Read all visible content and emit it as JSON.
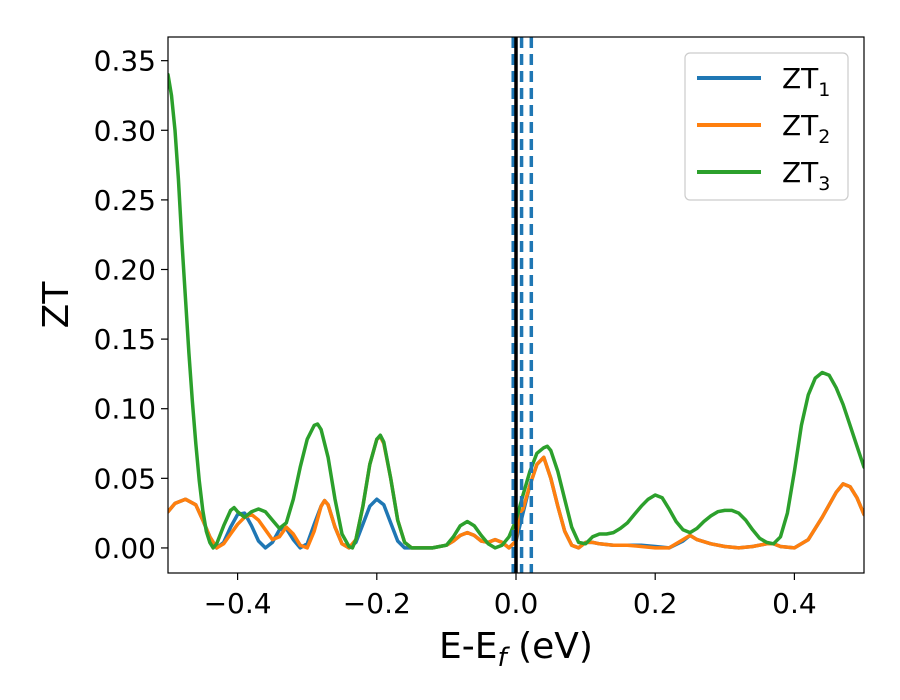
{
  "chart_data": {
    "type": "line",
    "xlabel": "E-E",
    "xlabel_sub": "f",
    "xlabel_unit": " (eV)",
    "ylabel": "ZT",
    "xlim": [
      -0.5,
      0.5
    ],
    "ylim": [
      -0.018,
      0.367
    ],
    "xticks": [
      -0.4,
      -0.2,
      0.0,
      0.2,
      0.4
    ],
    "xtick_labels": [
      "−0.4",
      "−0.2",
      "0.0",
      "0.2",
      "0.4"
    ],
    "yticks": [
      0.0,
      0.05,
      0.1,
      0.15,
      0.2,
      0.25,
      0.3,
      0.35
    ],
    "ytick_labels": [
      "0.00",
      "0.05",
      "0.10",
      "0.15",
      "0.20",
      "0.25",
      "0.30",
      "0.35"
    ],
    "legend_position": "top-right",
    "vlines": [
      {
        "x": 0.0,
        "style": "solid",
        "color": "#000000"
      },
      {
        "x": -0.004,
        "style": "dashed",
        "color": "#1f77b4"
      },
      {
        "x": 0.008,
        "style": "dashed",
        "color": "#1f77b4"
      },
      {
        "x": 0.022,
        "style": "dashed",
        "color": "#1f77b4"
      }
    ],
    "series": [
      {
        "name": "ZT",
        "sub": "1",
        "color": "#1f77b4",
        "points": [
          [
            -0.5,
            0.026
          ],
          [
            -0.49,
            0.032
          ],
          [
            -0.475,
            0.035
          ],
          [
            -0.46,
            0.031
          ],
          [
            -0.45,
            0.02
          ],
          [
            -0.44,
            0.008
          ],
          [
            -0.43,
            0.0
          ],
          [
            -0.42,
            0.004
          ],
          [
            -0.41,
            0.015
          ],
          [
            -0.4,
            0.024
          ],
          [
            -0.39,
            0.025
          ],
          [
            -0.38,
            0.016
          ],
          [
            -0.37,
            0.005
          ],
          [
            -0.36,
            0.0
          ],
          [
            -0.35,
            0.004
          ],
          [
            -0.34,
            0.013
          ],
          [
            -0.33,
            0.014
          ],
          [
            -0.32,
            0.006
          ],
          [
            -0.31,
            0.0
          ],
          [
            -0.3,
            0.003
          ],
          [
            -0.29,
            0.017
          ],
          [
            -0.28,
            0.03
          ],
          [
            -0.275,
            0.034
          ],
          [
            -0.27,
            0.031
          ],
          [
            -0.26,
            0.015
          ],
          [
            -0.25,
            0.003
          ],
          [
            -0.24,
            0.0
          ],
          [
            -0.23,
            0.004
          ],
          [
            -0.22,
            0.017
          ],
          [
            -0.21,
            0.03
          ],
          [
            -0.2,
            0.035
          ],
          [
            -0.19,
            0.031
          ],
          [
            -0.18,
            0.018
          ],
          [
            -0.17,
            0.005
          ],
          [
            -0.16,
            0.0
          ],
          [
            -0.14,
            0.0
          ],
          [
            -0.12,
            0.0
          ],
          [
            -0.1,
            0.002
          ],
          [
            -0.09,
            0.005
          ],
          [
            -0.08,
            0.009
          ],
          [
            -0.07,
            0.011
          ],
          [
            -0.06,
            0.009
          ],
          [
            -0.05,
            0.005
          ],
          [
            -0.04,
            0.004
          ],
          [
            -0.03,
            0.006
          ],
          [
            -0.02,
            0.004
          ],
          [
            -0.01,
            0.0
          ],
          [
            0.0,
            0.005
          ],
          [
            0.01,
            0.025
          ],
          [
            0.02,
            0.045
          ],
          [
            0.03,
            0.06
          ],
          [
            0.04,
            0.065
          ],
          [
            0.05,
            0.05
          ],
          [
            0.06,
            0.03
          ],
          [
            0.07,
            0.012
          ],
          [
            0.08,
            0.002
          ],
          [
            0.09,
            0.0
          ],
          [
            0.1,
            0.004
          ],
          [
            0.11,
            0.004
          ],
          [
            0.12,
            0.003
          ],
          [
            0.14,
            0.002
          ],
          [
            0.16,
            0.002
          ],
          [
            0.18,
            0.002
          ],
          [
            0.2,
            0.001
          ],
          [
            0.22,
            0.0
          ],
          [
            0.24,
            0.005
          ],
          [
            0.25,
            0.009
          ],
          [
            0.26,
            0.006
          ],
          [
            0.28,
            0.003
          ],
          [
            0.3,
            0.001
          ],
          [
            0.32,
            0.0
          ],
          [
            0.34,
            0.001
          ],
          [
            0.36,
            0.003
          ],
          [
            0.37,
            0.003
          ],
          [
            0.38,
            0.001
          ],
          [
            0.4,
            0.0
          ],
          [
            0.42,
            0.006
          ],
          [
            0.44,
            0.022
          ],
          [
            0.46,
            0.04
          ],
          [
            0.47,
            0.046
          ],
          [
            0.48,
            0.044
          ],
          [
            0.49,
            0.036
          ],
          [
            0.5,
            0.024
          ]
        ]
      },
      {
        "name": "ZT",
        "sub": "2",
        "color": "#ff7f0e",
        "points": [
          [
            -0.5,
            0.026
          ],
          [
            -0.49,
            0.032
          ],
          [
            -0.475,
            0.035
          ],
          [
            -0.46,
            0.031
          ],
          [
            -0.45,
            0.02
          ],
          [
            -0.44,
            0.008
          ],
          [
            -0.43,
            0.0
          ],
          [
            -0.42,
            0.003
          ],
          [
            -0.41,
            0.01
          ],
          [
            -0.4,
            0.017
          ],
          [
            -0.39,
            0.022
          ],
          [
            -0.38,
            0.024
          ],
          [
            -0.37,
            0.02
          ],
          [
            -0.36,
            0.013
          ],
          [
            -0.35,
            0.006
          ],
          [
            -0.34,
            0.008
          ],
          [
            -0.33,
            0.015
          ],
          [
            -0.32,
            0.01
          ],
          [
            -0.31,
            0.002
          ],
          [
            -0.3,
            0.0
          ],
          [
            -0.29,
            0.012
          ],
          [
            -0.28,
            0.03
          ],
          [
            -0.275,
            0.034
          ],
          [
            -0.27,
            0.031
          ],
          [
            -0.26,
            0.015
          ],
          [
            -0.25,
            0.003
          ],
          [
            -0.24,
            0.0
          ],
          [
            -0.23,
            0.006
          ],
          [
            -0.22,
            0.03
          ],
          [
            -0.21,
            0.06
          ],
          [
            -0.2,
            0.078
          ],
          [
            -0.195,
            0.08
          ],
          [
            -0.19,
            0.075
          ],
          [
            -0.18,
            0.05
          ],
          [
            -0.17,
            0.02
          ],
          [
            -0.16,
            0.004
          ],
          [
            -0.15,
            0.0
          ],
          [
            -0.12,
            0.0
          ],
          [
            -0.1,
            0.002
          ],
          [
            -0.09,
            0.005
          ],
          [
            -0.08,
            0.009
          ],
          [
            -0.07,
            0.011
          ],
          [
            -0.06,
            0.009
          ],
          [
            -0.05,
            0.005
          ],
          [
            -0.04,
            0.004
          ],
          [
            -0.03,
            0.006
          ],
          [
            -0.02,
            0.004
          ],
          [
            -0.01,
            0.0
          ],
          [
            0.0,
            0.005
          ],
          [
            0.005,
            0.025
          ],
          [
            0.01,
            0.028
          ],
          [
            0.02,
            0.045
          ],
          [
            0.03,
            0.06
          ],
          [
            0.04,
            0.065
          ],
          [
            0.05,
            0.05
          ],
          [
            0.06,
            0.03
          ],
          [
            0.07,
            0.012
          ],
          [
            0.08,
            0.002
          ],
          [
            0.09,
            0.0
          ],
          [
            0.1,
            0.004
          ],
          [
            0.11,
            0.004
          ],
          [
            0.12,
            0.003
          ],
          [
            0.14,
            0.002
          ],
          [
            0.16,
            0.002
          ],
          [
            0.18,
            0.001
          ],
          [
            0.2,
            0.0
          ],
          [
            0.22,
            0.0
          ],
          [
            0.24,
            0.006
          ],
          [
            0.25,
            0.009
          ],
          [
            0.26,
            0.006
          ],
          [
            0.28,
            0.003
          ],
          [
            0.3,
            0.001
          ],
          [
            0.32,
            0.0
          ],
          [
            0.34,
            0.001
          ],
          [
            0.36,
            0.003
          ],
          [
            0.37,
            0.003
          ],
          [
            0.38,
            0.001
          ],
          [
            0.4,
            0.0
          ],
          [
            0.42,
            0.006
          ],
          [
            0.44,
            0.022
          ],
          [
            0.46,
            0.04
          ],
          [
            0.47,
            0.046
          ],
          [
            0.48,
            0.044
          ],
          [
            0.49,
            0.036
          ],
          [
            0.5,
            0.024
          ]
        ]
      },
      {
        "name": "ZT",
        "sub": "3",
        "color": "#2ca02c",
        "points": [
          [
            -0.5,
            0.34
          ],
          [
            -0.495,
            0.325
          ],
          [
            -0.49,
            0.3
          ],
          [
            -0.485,
            0.265
          ],
          [
            -0.48,
            0.22
          ],
          [
            -0.475,
            0.18
          ],
          [
            -0.47,
            0.14
          ],
          [
            -0.465,
            0.105
          ],
          [
            -0.46,
            0.075
          ],
          [
            -0.455,
            0.048
          ],
          [
            -0.45,
            0.027
          ],
          [
            -0.445,
            0.012
          ],
          [
            -0.44,
            0.004
          ],
          [
            -0.435,
            0.0
          ],
          [
            -0.43,
            0.003
          ],
          [
            -0.42,
            0.016
          ],
          [
            -0.41,
            0.027
          ],
          [
            -0.405,
            0.029
          ],
          [
            -0.4,
            0.026
          ],
          [
            -0.39,
            0.022
          ],
          [
            -0.38,
            0.026
          ],
          [
            -0.37,
            0.028
          ],
          [
            -0.36,
            0.026
          ],
          [
            -0.35,
            0.02
          ],
          [
            -0.34,
            0.014
          ],
          [
            -0.33,
            0.018
          ],
          [
            -0.32,
            0.035
          ],
          [
            -0.31,
            0.058
          ],
          [
            -0.3,
            0.078
          ],
          [
            -0.29,
            0.088
          ],
          [
            -0.285,
            0.089
          ],
          [
            -0.28,
            0.085
          ],
          [
            -0.27,
            0.065
          ],
          [
            -0.26,
            0.035
          ],
          [
            -0.25,
            0.01
          ],
          [
            -0.24,
            0.001
          ],
          [
            -0.235,
            0.0
          ],
          [
            -0.23,
            0.006
          ],
          [
            -0.22,
            0.03
          ],
          [
            -0.21,
            0.06
          ],
          [
            -0.2,
            0.078
          ],
          [
            -0.195,
            0.081
          ],
          [
            -0.19,
            0.076
          ],
          [
            -0.18,
            0.05
          ],
          [
            -0.17,
            0.02
          ],
          [
            -0.16,
            0.004
          ],
          [
            -0.15,
            0.0
          ],
          [
            -0.14,
            0.0
          ],
          [
            -0.12,
            0.0
          ],
          [
            -0.1,
            0.002
          ],
          [
            -0.09,
            0.008
          ],
          [
            -0.08,
            0.016
          ],
          [
            -0.07,
            0.019
          ],
          [
            -0.06,
            0.016
          ],
          [
            -0.05,
            0.009
          ],
          [
            -0.04,
            0.003
          ],
          [
            -0.03,
            0.0
          ],
          [
            -0.02,
            0.002
          ],
          [
            -0.01,
            0.008
          ],
          [
            0.0,
            0.02
          ],
          [
            0.01,
            0.038
          ],
          [
            0.02,
            0.055
          ],
          [
            0.03,
            0.068
          ],
          [
            0.04,
            0.072
          ],
          [
            0.045,
            0.073
          ],
          [
            0.05,
            0.07
          ],
          [
            0.06,
            0.055
          ],
          [
            0.07,
            0.035
          ],
          [
            0.08,
            0.015
          ],
          [
            0.09,
            0.004
          ],
          [
            0.1,
            0.003
          ],
          [
            0.11,
            0.008
          ],
          [
            0.12,
            0.01
          ],
          [
            0.13,
            0.01
          ],
          [
            0.14,
            0.011
          ],
          [
            0.15,
            0.014
          ],
          [
            0.16,
            0.018
          ],
          [
            0.17,
            0.024
          ],
          [
            0.18,
            0.03
          ],
          [
            0.19,
            0.035
          ],
          [
            0.2,
            0.038
          ],
          [
            0.21,
            0.036
          ],
          [
            0.22,
            0.028
          ],
          [
            0.23,
            0.019
          ],
          [
            0.24,
            0.013
          ],
          [
            0.25,
            0.011
          ],
          [
            0.26,
            0.014
          ],
          [
            0.27,
            0.019
          ],
          [
            0.28,
            0.023
          ],
          [
            0.29,
            0.026
          ],
          [
            0.3,
            0.027
          ],
          [
            0.31,
            0.027
          ],
          [
            0.32,
            0.025
          ],
          [
            0.33,
            0.02
          ],
          [
            0.34,
            0.013
          ],
          [
            0.35,
            0.007
          ],
          [
            0.36,
            0.004
          ],
          [
            0.37,
            0.003
          ],
          [
            0.38,
            0.008
          ],
          [
            0.39,
            0.025
          ],
          [
            0.4,
            0.055
          ],
          [
            0.41,
            0.088
          ],
          [
            0.42,
            0.11
          ],
          [
            0.43,
            0.122
          ],
          [
            0.44,
            0.126
          ],
          [
            0.45,
            0.124
          ],
          [
            0.46,
            0.115
          ],
          [
            0.47,
            0.103
          ],
          [
            0.48,
            0.088
          ],
          [
            0.49,
            0.073
          ],
          [
            0.5,
            0.058
          ]
        ]
      }
    ]
  }
}
